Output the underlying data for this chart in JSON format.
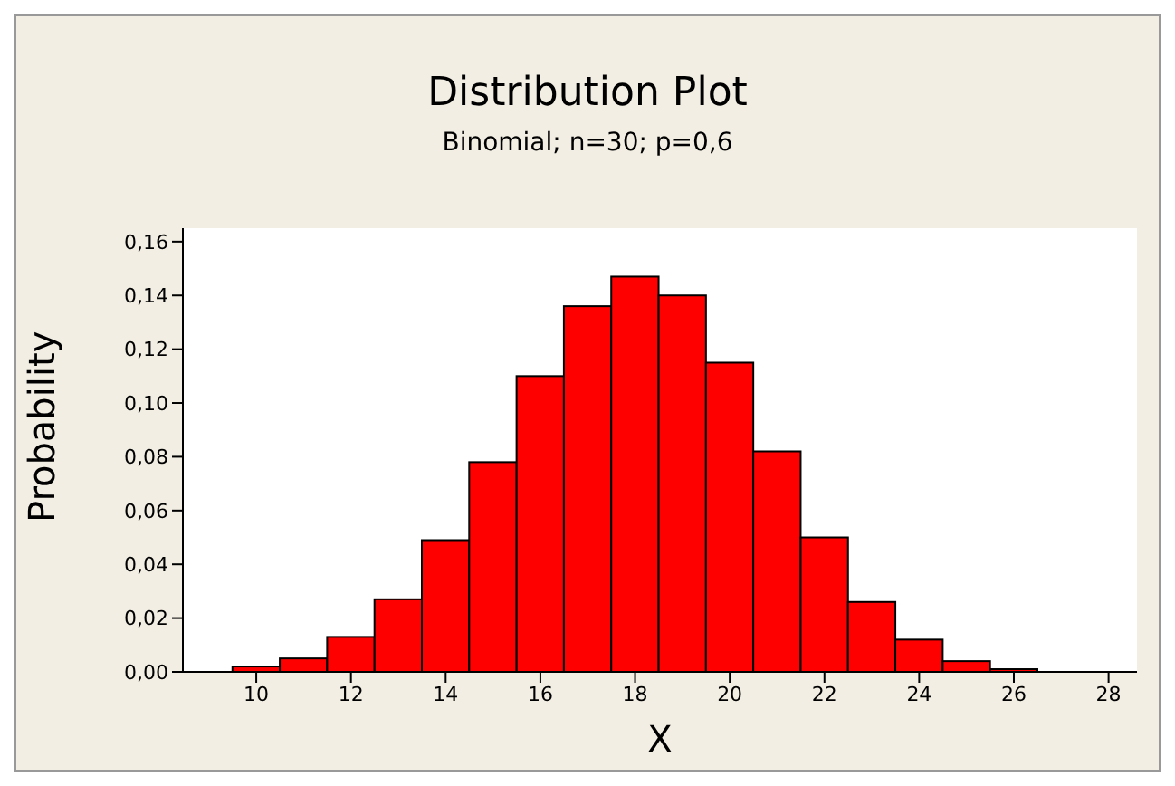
{
  "chart_data": {
    "type": "histogram",
    "title": "Distribution Plot",
    "subtitle": "Binomial; n=30; p=0,6",
    "xlabel": "X",
    "ylabel": "Probability",
    "bins": [
      9.5,
      10.5,
      11.5,
      12.5,
      13.5,
      14.5,
      15.5,
      16.5,
      17.5,
      18.5,
      19.5,
      20.5,
      21.5,
      22.5,
      23.5,
      24.5,
      25.5,
      26.5
    ],
    "values": [
      0.002,
      0.005,
      0.013,
      0.027,
      0.049,
      0.078,
      0.11,
      0.136,
      0.147,
      0.14,
      0.115,
      0.082,
      0.05,
      0.026,
      0.012,
      0.004,
      0.001
    ],
    "color": "#ff0000",
    "xlim": [
      8.45,
      28.6
    ],
    "xticks": [
      10,
      12,
      14,
      16,
      18,
      20,
      22,
      24,
      26,
      28
    ],
    "ylim": [
      0,
      0.165
    ],
    "yticks": [
      {
        "value": 0,
        "label": "0,00"
      },
      {
        "value": 0.02,
        "label": "0,02"
      },
      {
        "value": 0.04,
        "label": "0,04"
      },
      {
        "value": 0.06,
        "label": "0,06"
      },
      {
        "value": 0.08,
        "label": "0,08"
      },
      {
        "value": 0.1,
        "label": "0,10"
      },
      {
        "value": 0.12,
        "label": "0,12"
      },
      {
        "value": 0.14,
        "label": "0,14"
      },
      {
        "value": 0.16,
        "label": "0,16"
      }
    ],
    "grid": false,
    "legend": false
  }
}
